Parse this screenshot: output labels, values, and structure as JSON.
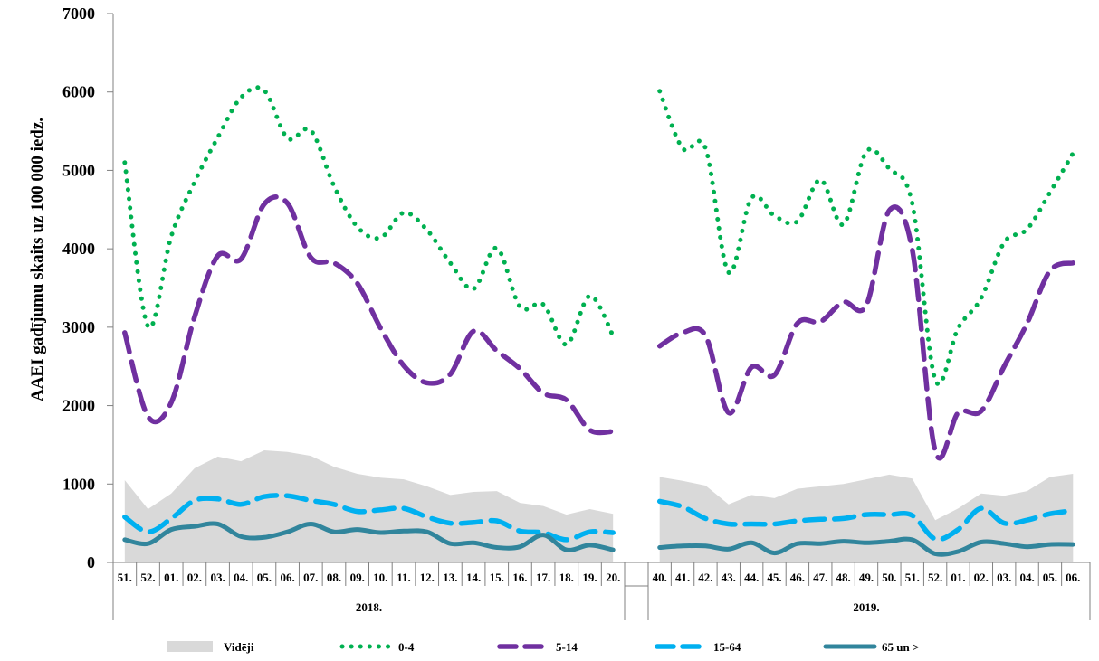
{
  "chart_data": {
    "type": "area",
    "title": "",
    "ylabel": "AAEI gadījumu skaits uz 100 000 iedz.",
    "xlabel": "",
    "ylim": [
      0,
      7000
    ],
    "yticks": [
      0,
      1000,
      2000,
      3000,
      4000,
      5000,
      6000,
      7000
    ],
    "grid": false,
    "legend_position": "bottom",
    "groups": [
      {
        "label": "2018.",
        "categories": [
          "51.",
          "52.",
          "01.",
          "02.",
          "03.",
          "04.",
          "05.",
          "06.",
          "07.",
          "08.",
          "09.",
          "10.",
          "11.",
          "12.",
          "13.",
          "14.",
          "15.",
          "16.",
          "17.",
          "18.",
          "19.",
          "20."
        ]
      },
      {
        "label": "2019.",
        "categories": [
          "40.",
          "41.",
          "42.",
          "43.",
          "44.",
          "45.",
          "46.",
          "47.",
          "48.",
          "49.",
          "50.",
          "51.",
          "52.",
          "01.",
          "02.",
          "03.",
          "04.",
          "05.",
          "06."
        ]
      }
    ],
    "series": [
      {
        "name": "Vidēji",
        "style": "area",
        "color": "#d9d9d9",
        "values": [
          [
            1050,
            680,
            880,
            1200,
            1350,
            1290,
            1430,
            1410,
            1360,
            1220,
            1130,
            1080,
            1060,
            970,
            860,
            900,
            910,
            760,
            720,
            610,
            680,
            620
          ],
          [
            1090,
            1040,
            980,
            740,
            860,
            820,
            940,
            970,
            1000,
            1060,
            1120,
            1070,
            540,
            690,
            880,
            850,
            910,
            1090,
            1130
          ]
        ]
      },
      {
        "name": "0-4",
        "style": "dotted",
        "color": "#00b050",
        "values": [
          [
            5100,
            3010,
            4160,
            4850,
            5420,
            5930,
            6020,
            5410,
            5510,
            4800,
            4280,
            4140,
            4460,
            4240,
            3820,
            3490,
            4010,
            3260,
            3290,
            2780,
            3400,
            2890
          ],
          [
            6010,
            5280,
            5280,
            3700,
            4650,
            4420,
            4350,
            4880,
            4310,
            5240,
            5020,
            4580,
            2330,
            2990,
            3370,
            4080,
            4250,
            4720,
            5220
          ]
        ]
      },
      {
        "name": "5-14",
        "style": "dashed",
        "color": "#7030a0",
        "values": [
          [
            2930,
            1860,
            2040,
            3130,
            3910,
            3870,
            4570,
            4580,
            3890,
            3820,
            3560,
            2990,
            2510,
            2290,
            2400,
            2950,
            2700,
            2470,
            2160,
            2070,
            1690,
            1670
          ],
          [
            2760,
            2930,
            2890,
            1910,
            2490,
            2390,
            3050,
            3070,
            3320,
            3280,
            4490,
            3990,
            1420,
            1910,
            1930,
            2500,
            3050,
            3720,
            3820
          ]
        ]
      },
      {
        "name": "15-64",
        "style": "dashed",
        "color": "#00b0f0",
        "values": [
          [
            580,
            390,
            560,
            790,
            810,
            740,
            840,
            850,
            790,
            740,
            650,
            670,
            690,
            580,
            500,
            510,
            530,
            400,
            380,
            290,
            390,
            380
          ],
          [
            780,
            710,
            560,
            490,
            490,
            490,
            530,
            550,
            560,
            610,
            610,
            600,
            300,
            420,
            690,
            500,
            540,
            620,
            660
          ]
        ]
      },
      {
        "name": "65 un >",
        "style": "solid",
        "color": "#31859c",
        "values": [
          [
            290,
            240,
            420,
            460,
            490,
            330,
            320,
            390,
            490,
            390,
            420,
            380,
            400,
            390,
            240,
            250,
            190,
            200,
            350,
            160,
            220,
            160
          ],
          [
            190,
            210,
            210,
            170,
            250,
            120,
            240,
            240,
            270,
            250,
            270,
            290,
            110,
            140,
            260,
            240,
            200,
            230,
            230
          ]
        ]
      }
    ]
  }
}
